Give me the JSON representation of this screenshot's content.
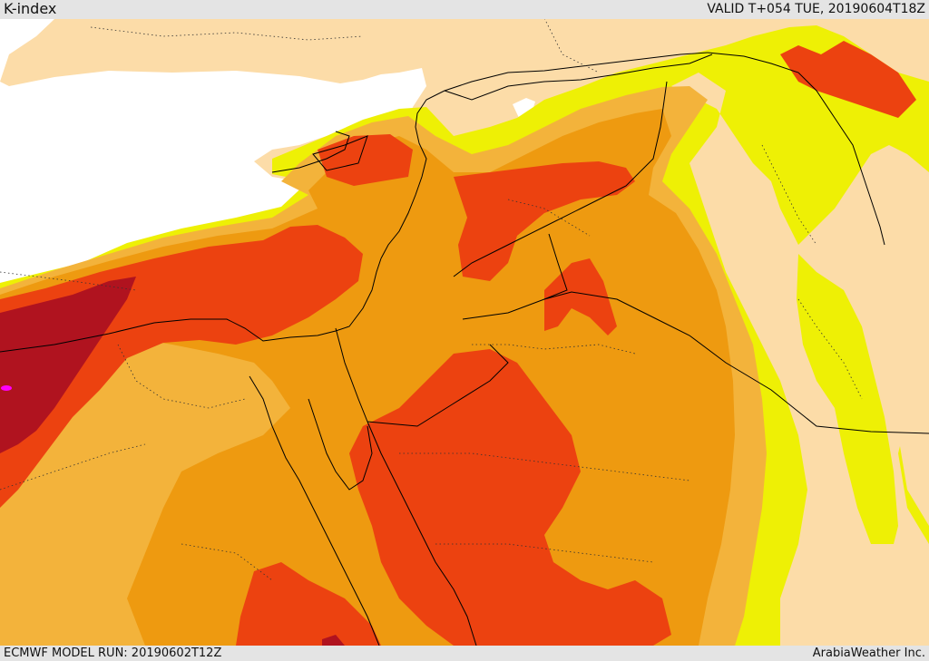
{
  "header": {
    "title": "K-index",
    "valid_time": "VALID T+054 TUE, 20190604T18Z"
  },
  "footer": {
    "model_run": "ECMWF MODEL RUN: 20190602T12Z",
    "credit": "ArabiaWeather Inc."
  },
  "colors": {
    "land_low": "#fcdca8",
    "sea": "#ffffff",
    "k_yellow": "#eef005",
    "k_orange_light": "#f3b33b",
    "k_orange": "#ee9a10",
    "k_red_orange": "#ec4210",
    "k_dark_red": "#b0131f",
    "k_magenta": "#ff00ff",
    "borders": "#000000"
  }
}
